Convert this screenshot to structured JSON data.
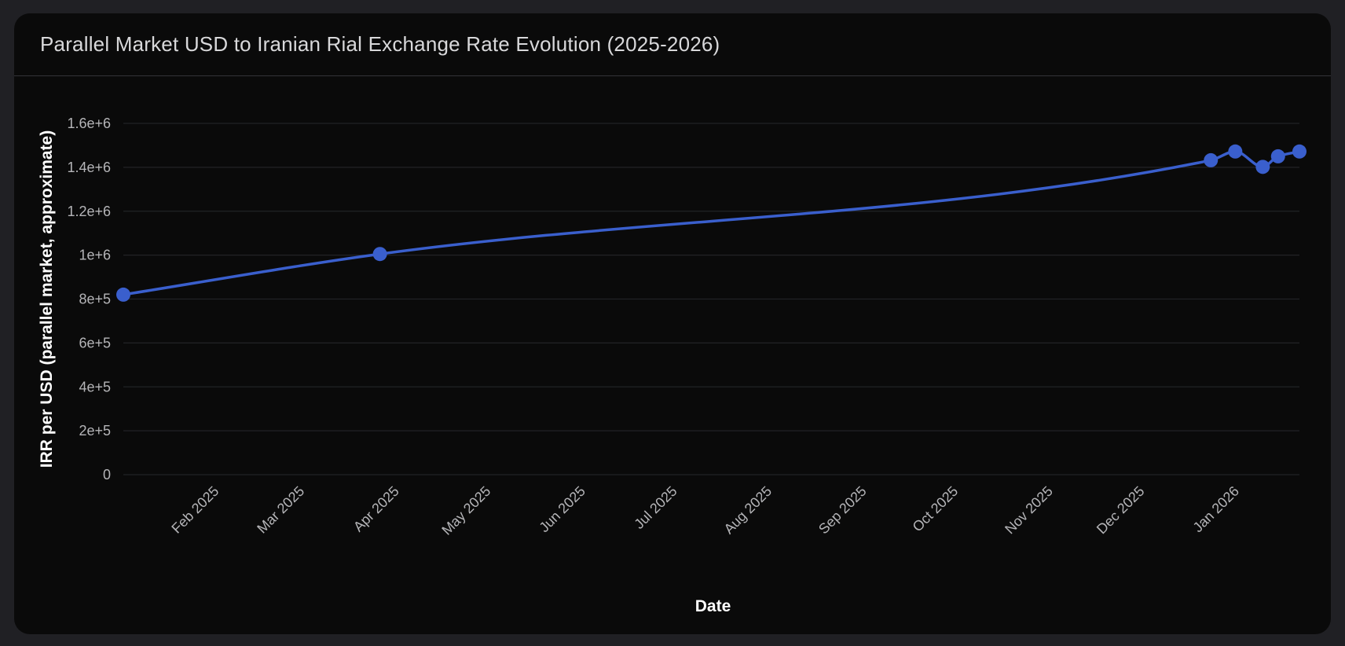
{
  "chart_data": {
    "type": "line",
    "title": "Parallel Market USD to Iranian Rial Exchange Rate Evolution (2025-2026)",
    "xlabel": "Date",
    "ylabel": "IRR per USD (parallel market, approximate)",
    "ylim": [
      0,
      1600000
    ],
    "y_ticks": [
      {
        "value": 0,
        "label": "0"
      },
      {
        "value": 200000,
        "label": "2e+5"
      },
      {
        "value": 400000,
        "label": "4e+5"
      },
      {
        "value": 600000,
        "label": "6e+5"
      },
      {
        "value": 800000,
        "label": "8e+5"
      },
      {
        "value": 1000000,
        "label": "1e+6"
      },
      {
        "value": 1200000,
        "label": "1.2e+6"
      },
      {
        "value": 1400000,
        "label": "1.4e+6"
      },
      {
        "value": 1600000,
        "label": "1.6e+6"
      }
    ],
    "xlim": [
      "2025-01-01",
      "2026-01-21"
    ],
    "x_ticks": [
      {
        "date": "2025-02-01",
        "label": "Feb 2025"
      },
      {
        "date": "2025-03-01",
        "label": "Mar 2025"
      },
      {
        "date": "2025-04-01",
        "label": "Apr 2025"
      },
      {
        "date": "2025-05-01",
        "label": "May 2025"
      },
      {
        "date": "2025-06-01",
        "label": "Jun 2025"
      },
      {
        "date": "2025-07-01",
        "label": "Jul 2025"
      },
      {
        "date": "2025-08-01",
        "label": "Aug 2025"
      },
      {
        "date": "2025-09-01",
        "label": "Sep 2025"
      },
      {
        "date": "2025-10-01",
        "label": "Oct 2025"
      },
      {
        "date": "2025-11-01",
        "label": "Nov 2025"
      },
      {
        "date": "2025-12-01",
        "label": "Dec 2025"
      },
      {
        "date": "2026-01-01",
        "label": "Jan 2026"
      }
    ],
    "series": [
      {
        "color": "#3a5fcd",
        "points": [
          {
            "x": "2025-01-01",
            "y": 820000
          },
          {
            "x": "2025-03-26",
            "y": 1005000
          },
          {
            "x": "2025-12-23",
            "y": 1432000
          },
          {
            "x": "2025-12-31",
            "y": 1472000
          },
          {
            "x": "2026-01-09",
            "y": 1402000
          },
          {
            "x": "2026-01-14",
            "y": 1450000
          },
          {
            "x": "2026-01-21",
            "y": 1472000
          }
        ]
      }
    ],
    "grid": true,
    "legend": "none"
  }
}
